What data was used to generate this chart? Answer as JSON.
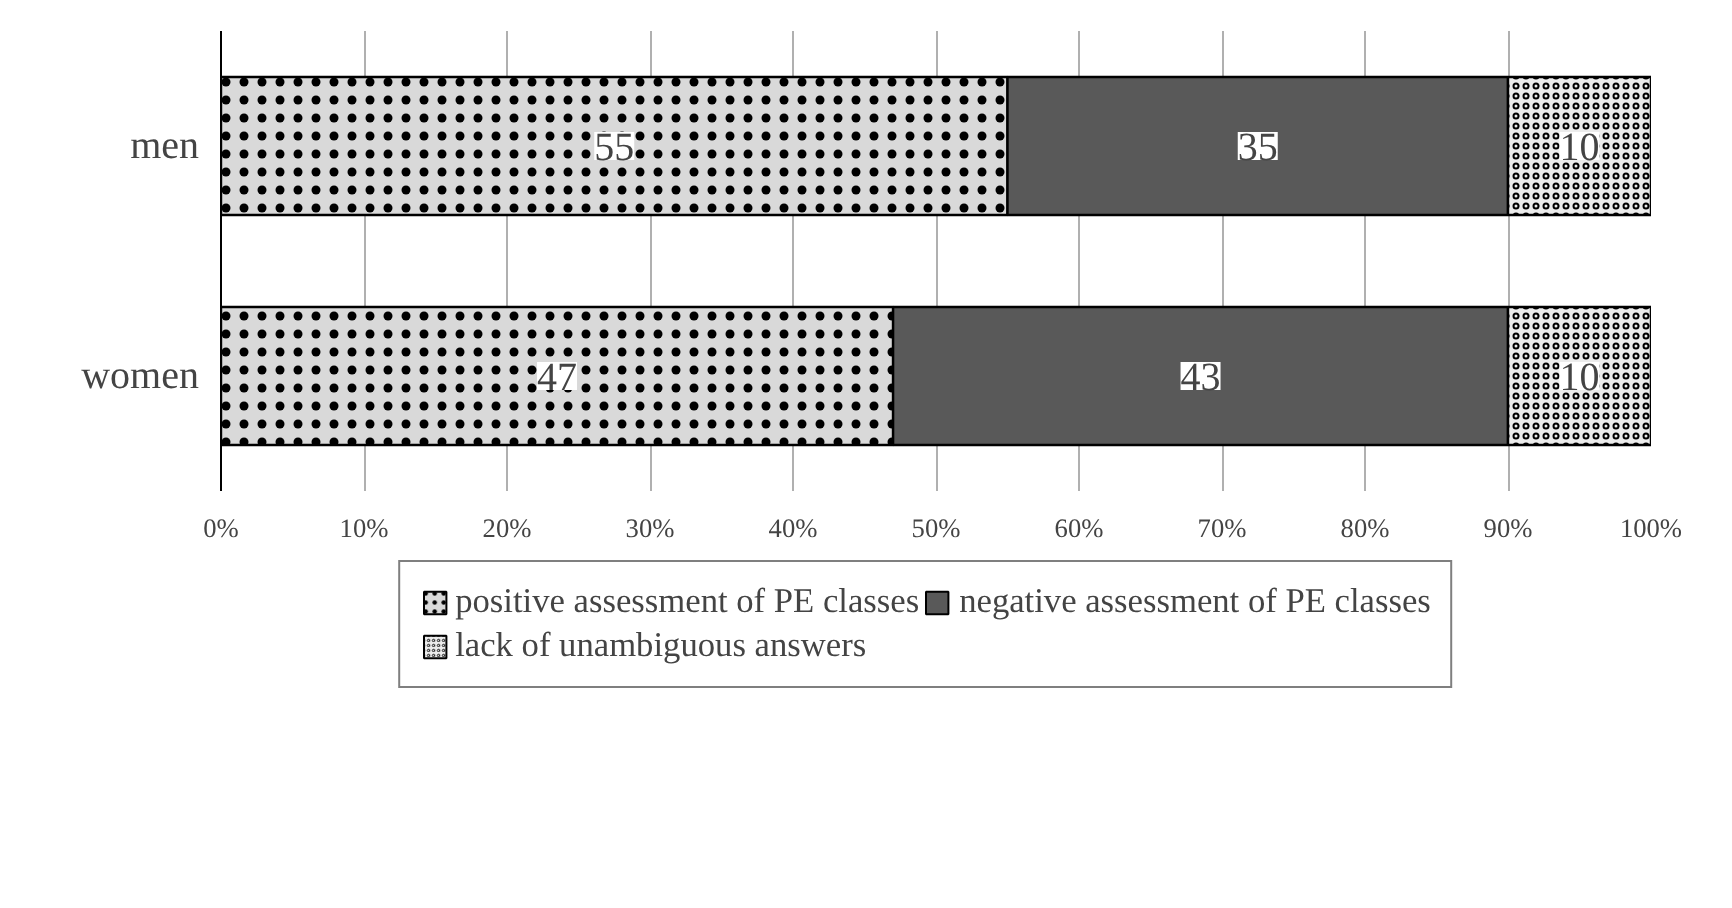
{
  "chart_data": {
    "type": "bar",
    "orientation": "horizontal",
    "stacked": true,
    "categories": [
      "men",
      "women"
    ],
    "series": [
      {
        "name": "positive assessment of PE classes",
        "color": "#d9d9d9",
        "values": [
          55,
          47
        ]
      },
      {
        "name": "negative assessment of PE classes",
        "color": "#595959",
        "values": [
          35,
          43
        ]
      },
      {
        "name": "lack of unambiguous answers",
        "color": "#ececec",
        "values": [
          10,
          10
        ]
      }
    ],
    "xlim": [
      0,
      100
    ],
    "xticks": [
      {
        "value": 0,
        "label": "0%"
      },
      {
        "value": 10,
        "label": "10%"
      },
      {
        "value": 20,
        "label": "20%"
      },
      {
        "value": 30,
        "label": "30%"
      },
      {
        "value": 40,
        "label": "40%"
      },
      {
        "value": 50,
        "label": "50%"
      },
      {
        "value": 60,
        "label": "60%"
      },
      {
        "value": 70,
        "label": "70%"
      },
      {
        "value": 80,
        "label": "80%"
      },
      {
        "value": 90,
        "label": "90%"
      },
      {
        "value": 100,
        "label": "100%"
      }
    ],
    "grid": "x",
    "legend": "bottom",
    "data_labels": true
  }
}
